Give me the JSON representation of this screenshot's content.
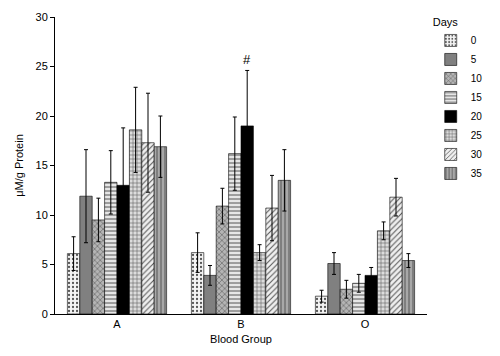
{
  "chart_data": {
    "type": "bar",
    "x_label": "Blood Group",
    "y_label": "μM/g Protein",
    "legend_title": "Days",
    "legend": "right",
    "grid": false,
    "categories": [
      "A",
      "B",
      "O"
    ],
    "series": [
      {
        "name": "0",
        "color": "#f4f4f4",
        "values": [
          6.1,
          6.2,
          1.8
        ],
        "errors": [
          1.7,
          2.0,
          0.6
        ]
      },
      {
        "name": "5",
        "color": "#808080",
        "values": [
          11.9,
          3.9,
          5.1
        ],
        "errors": [
          4.7,
          1.0,
          1.1
        ]
      },
      {
        "name": "10",
        "color": "#b4b4b4",
        "values": [
          9.5,
          10.9,
          2.5
        ],
        "errors": [
          2.2,
          1.8,
          0.9
        ]
      },
      {
        "name": "15",
        "color": "#e6e6e6",
        "values": [
          13.3,
          16.2,
          3.1
        ],
        "errors": [
          3.2,
          3.7,
          0.9
        ]
      },
      {
        "name": "20",
        "color": "#000000",
        "values": [
          13.0,
          19.0,
          3.9
        ],
        "errors": [
          5.8,
          5.6,
          0.8
        ]
      },
      {
        "name": "25",
        "color": "#dcdcdc",
        "values": [
          18.6,
          6.2,
          8.4
        ],
        "errors": [
          4.3,
          0.8,
          0.9
        ]
      },
      {
        "name": "30",
        "color": "#efefef",
        "values": [
          17.3,
          10.7,
          11.8
        ],
        "errors": [
          5.0,
          3.3,
          1.9
        ]
      },
      {
        "name": "35",
        "color": "#a8a8a8",
        "values": [
          16.9,
          13.5,
          5.4
        ],
        "errors": [
          3.1,
          3.1,
          0.7
        ]
      }
    ],
    "ylim": [
      0,
      30
    ],
    "yticks": [
      0,
      5,
      10,
      15,
      20,
      25,
      30
    ],
    "annotations": [
      {
        "text": "#",
        "category": "B",
        "series": "20"
      }
    ]
  }
}
